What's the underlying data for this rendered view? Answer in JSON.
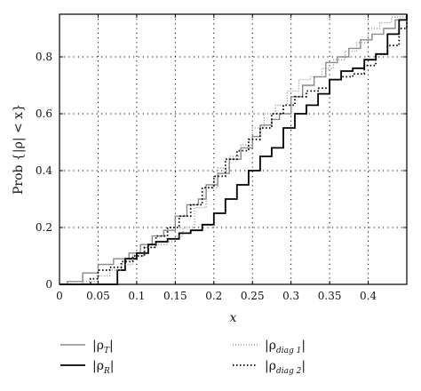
{
  "chart_data": {
    "type": "line",
    "xlabel": "x",
    "ylabel": "Prob {|ρ| < x}",
    "xlim": [
      0,
      0.45
    ],
    "ylim": [
      0,
      0.95
    ],
    "xticks": [
      0,
      0.05,
      0.1,
      0.15,
      0.2,
      0.25,
      0.3,
      0.35,
      0.4
    ],
    "xtick_labels": [
      "0",
      "0.05",
      "0.1",
      "0.15",
      "0.2",
      "0.25",
      "0.3",
      "0.35",
      "0.4"
    ],
    "yticks": [
      0,
      0.2,
      0.4,
      0.6,
      0.8
    ],
    "ytick_labels": [
      "0",
      "0.2",
      "0.4",
      "0.6",
      "0.8"
    ],
    "grid": true,
    "legend_placement": "below plot",
    "series": [
      {
        "name": "|ρ_T|",
        "style": "solid",
        "color": "#8a8a8a",
        "width": 1.4,
        "x": [
          0.0,
          0.01,
          0.03,
          0.05,
          0.07,
          0.09,
          0.105,
          0.12,
          0.135,
          0.15,
          0.165,
          0.18,
          0.19,
          0.205,
          0.22,
          0.235,
          0.25,
          0.26,
          0.275,
          0.285,
          0.3,
          0.315,
          0.33,
          0.345,
          0.36,
          0.375,
          0.39,
          0.405,
          0.42,
          0.435,
          0.45
        ],
        "y": [
          0.0,
          0.01,
          0.04,
          0.07,
          0.09,
          0.11,
          0.14,
          0.17,
          0.19,
          0.24,
          0.28,
          0.3,
          0.35,
          0.39,
          0.44,
          0.48,
          0.52,
          0.56,
          0.58,
          0.6,
          0.66,
          0.7,
          0.73,
          0.78,
          0.8,
          0.83,
          0.86,
          0.88,
          0.9,
          0.93,
          0.95
        ]
      },
      {
        "name": "|ρ_R|",
        "style": "solid",
        "color": "#000000",
        "width": 1.8,
        "x": [
          0.0,
          0.07,
          0.075,
          0.085,
          0.1,
          0.115,
          0.125,
          0.14,
          0.155,
          0.17,
          0.185,
          0.2,
          0.215,
          0.23,
          0.245,
          0.26,
          0.275,
          0.29,
          0.305,
          0.32,
          0.335,
          0.35,
          0.365,
          0.38,
          0.395,
          0.41,
          0.425,
          0.44,
          0.45
        ],
        "y": [
          0.0,
          0.0,
          0.05,
          0.09,
          0.11,
          0.14,
          0.15,
          0.16,
          0.18,
          0.19,
          0.21,
          0.25,
          0.3,
          0.35,
          0.4,
          0.45,
          0.48,
          0.55,
          0.6,
          0.63,
          0.67,
          0.72,
          0.75,
          0.76,
          0.79,
          0.81,
          0.88,
          0.93,
          0.95
        ]
      },
      {
        "name": "|ρ_diag1|",
        "style": "dotted-fine",
        "color": "#8a8a8a",
        "width": 1.3,
        "x": [
          0.0,
          0.03,
          0.05,
          0.065,
          0.08,
          0.095,
          0.11,
          0.125,
          0.14,
          0.15,
          0.16,
          0.175,
          0.19,
          0.205,
          0.22,
          0.235,
          0.25,
          0.265,
          0.28,
          0.295,
          0.31,
          0.325,
          0.34,
          0.355,
          0.37,
          0.385,
          0.4,
          0.415,
          0.43,
          0.45
        ],
        "y": [
          0.0,
          0.01,
          0.03,
          0.05,
          0.07,
          0.1,
          0.13,
          0.14,
          0.15,
          0.17,
          0.2,
          0.27,
          0.34,
          0.41,
          0.45,
          0.49,
          0.55,
          0.6,
          0.63,
          0.68,
          0.72,
          0.73,
          0.76,
          0.79,
          0.82,
          0.85,
          0.9,
          0.92,
          0.94,
          0.95
        ]
      },
      {
        "name": "|ρ_diag2|",
        "style": "dotted",
        "color": "#000000",
        "width": 1.8,
        "x": [
          0.0,
          0.04,
          0.05,
          0.065,
          0.08,
          0.095,
          0.11,
          0.125,
          0.14,
          0.155,
          0.17,
          0.185,
          0.2,
          0.215,
          0.23,
          0.245,
          0.26,
          0.275,
          0.29,
          0.305,
          0.32,
          0.335,
          0.35,
          0.365,
          0.38,
          0.395,
          0.41,
          0.425,
          0.44,
          0.45
        ],
        "y": [
          0.0,
          0.02,
          0.05,
          0.06,
          0.08,
          0.1,
          0.13,
          0.17,
          0.2,
          0.24,
          0.28,
          0.34,
          0.38,
          0.44,
          0.47,
          0.51,
          0.55,
          0.6,
          0.63,
          0.66,
          0.68,
          0.69,
          0.72,
          0.73,
          0.74,
          0.77,
          0.81,
          0.84,
          0.9,
          0.95
        ]
      }
    ]
  },
  "legend": {
    "items": [
      {
        "label_base": "|ρ",
        "sub": "T",
        "tail": "|"
      },
      {
        "label_base": "|ρ",
        "sub": "R",
        "tail": "|"
      },
      {
        "label_base": "|ρ",
        "sub": "diag 1",
        "tail": "|"
      },
      {
        "label_base": "|ρ",
        "sub": "diag 2",
        "tail": "|"
      }
    ]
  }
}
